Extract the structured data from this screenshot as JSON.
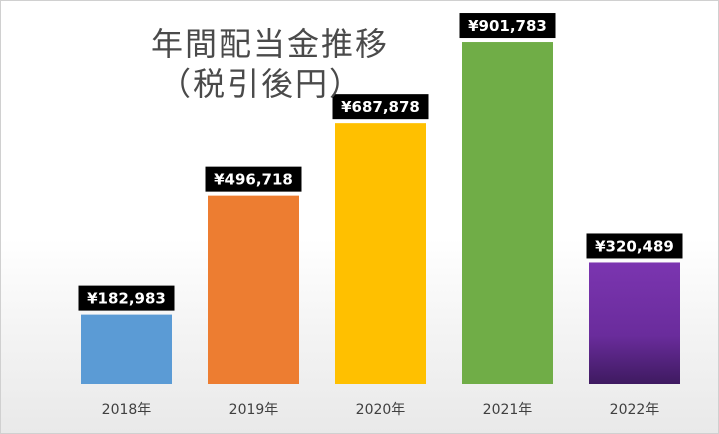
{
  "chart_data": {
    "type": "bar",
    "title": "年間配当金推移",
    "subtitle": "（税引後円）",
    "categories": [
      "2018年",
      "2019年",
      "2020年",
      "2021年",
      "2022年"
    ],
    "values": [
      182983,
      496718,
      687878,
      901783,
      320489
    ],
    "data_labels": [
      "¥182,983",
      "¥496,718",
      "¥687,878",
      "¥901,783",
      "¥320,489"
    ],
    "colors": [
      "#5b9bd5",
      "#ed7d31",
      "#ffc000",
      "#70ad47",
      "#7030a0"
    ],
    "ylim": [
      0,
      1010000
    ],
    "grid": false,
    "legend": "none"
  }
}
